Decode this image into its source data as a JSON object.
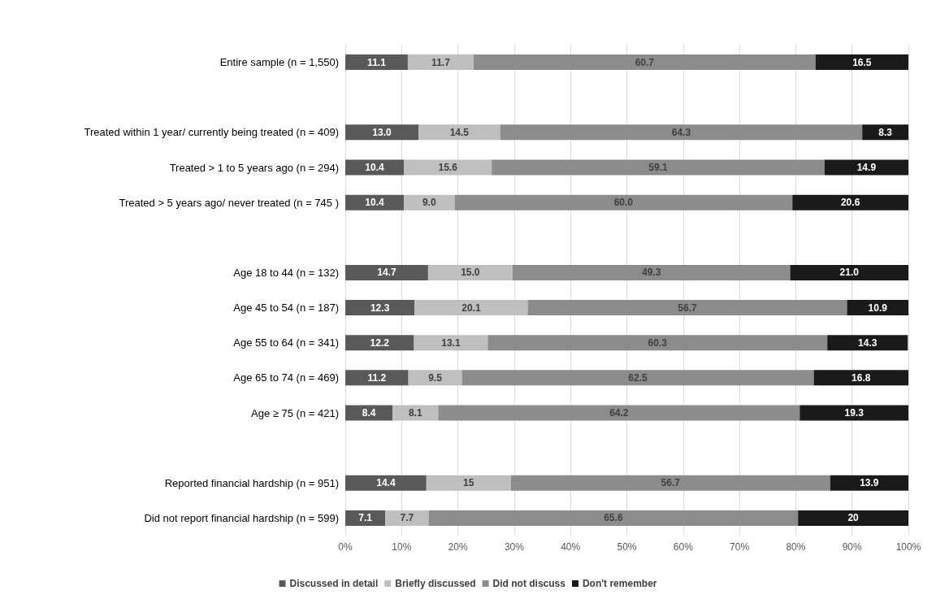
{
  "chart_data": {
    "type": "bar",
    "orientation": "horizontal",
    "stacked": true,
    "categories": [
      "Entire sample (n = 1,550)",
      null,
      "Treated within 1 year/ currently being treated (n = 409)",
      "Treated > 1 to 5 years ago (n = 294)",
      "Treated > 5 years ago/ never treated (n = 745 )",
      null,
      "Age 18 to 44 (n = 132)",
      "Age 45 to 54 (n = 187)",
      "Age 55 to 64 (n = 341)",
      "Age 65 to 74 (n = 469)",
      "Age ≥ 75 (n = 421)",
      null,
      "Reported financial hardship (n = 951)",
      "Did not report financial hardship (n = 599)"
    ],
    "series": [
      {
        "name": "Discussed in detail",
        "color": "#595959",
        "values": [
          11.1,
          null,
          13.0,
          10.4,
          10.4,
          null,
          14.7,
          12.3,
          12.2,
          11.2,
          8.4,
          null,
          14.4,
          7.1
        ],
        "value_labels": [
          "11.1",
          null,
          "13.0",
          "10.4",
          "10.4",
          null,
          "14.7",
          "12.3",
          "12.2",
          "11.2",
          "8.4",
          null,
          "14.4",
          "7.1"
        ]
      },
      {
        "name": "Briefly discussed",
        "color": "#bfbfbf",
        "values": [
          11.7,
          null,
          14.5,
          15.6,
          9.0,
          null,
          15.0,
          20.1,
          13.1,
          9.5,
          8.1,
          null,
          15,
          7.7
        ],
        "value_labels": [
          "11.7",
          null,
          "14.5",
          "15.6",
          "9.0",
          null,
          "15.0",
          "20.1",
          "13.1",
          "9.5",
          "8.1",
          null,
          "15",
          "7.7"
        ]
      },
      {
        "name": "Did not discuss",
        "color": "#8c8c8c",
        "values": [
          60.7,
          null,
          64.3,
          59.1,
          60.0,
          null,
          49.3,
          56.7,
          60.3,
          62.5,
          64.2,
          null,
          56.7,
          65.6
        ],
        "value_labels": [
          "60.7",
          null,
          "64.3",
          "59.1",
          "60.0",
          null,
          "49.3",
          "56.7",
          "60.3",
          "62.5",
          "64.2",
          null,
          "56.7",
          "65.6"
        ]
      },
      {
        "name": "Don't remember",
        "color": "#1a1a1a",
        "values": [
          16.5,
          null,
          8.3,
          14.9,
          20.6,
          null,
          21.0,
          10.9,
          14.3,
          16.8,
          19.3,
          null,
          13.9,
          20
        ],
        "value_labels": [
          "16.5",
          null,
          "8.3",
          "14.9",
          "20.6",
          null,
          "21.0",
          "10.9",
          "14.3",
          "16.8",
          "19.3",
          null,
          "13.9",
          "20"
        ]
      }
    ],
    "xlim": [
      0,
      100
    ],
    "xticks": [
      {
        "value": 0,
        "label": "0%"
      },
      {
        "value": 10,
        "label": "10%"
      },
      {
        "value": 20,
        "label": "20%"
      },
      {
        "value": 30,
        "label": "30%"
      },
      {
        "value": 40,
        "label": "40%"
      },
      {
        "value": 50,
        "label": "50%"
      },
      {
        "value": 60,
        "label": "60%"
      },
      {
        "value": 70,
        "label": "70%"
      },
      {
        "value": 80,
        "label": "80%"
      },
      {
        "value": 90,
        "label": "90%"
      },
      {
        "value": 100,
        "label": "100%"
      }
    ],
    "grid": "x",
    "legend": "bottom"
  }
}
